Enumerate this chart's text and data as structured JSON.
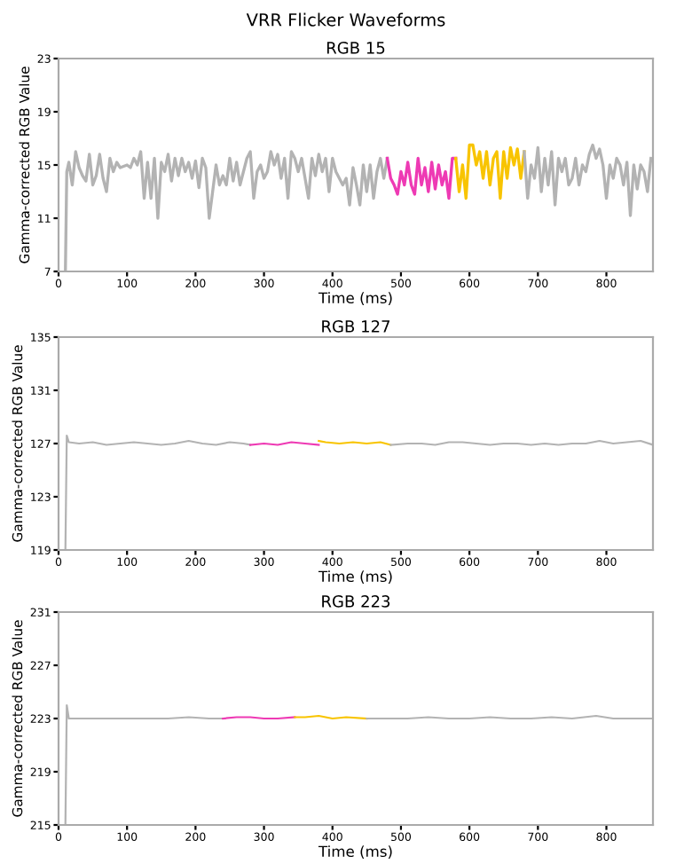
{
  "chart_data": [
    {
      "type": "line",
      "title": "VRR Flicker Waveforms",
      "subtitle": "RGB 15",
      "xlabel": "Time (ms)",
      "ylabel": "Gamma-corrected RGB Value",
      "xlim": [
        0,
        868
      ],
      "xticks": [
        0,
        100,
        200,
        300,
        400,
        500,
        600,
        700,
        800
      ],
      "ylim": [
        7,
        23
      ],
      "yticks": [
        7,
        11,
        15,
        19,
        23
      ],
      "grid": false,
      "marker": "none",
      "line_style": "solid",
      "series": [
        {
          "color": "#b3b3b3",
          "x": [
            10,
            12,
            15,
            20,
            25,
            30,
            35,
            40,
            45,
            50,
            55,
            60,
            65,
            70,
            75,
            80,
            85,
            90,
            100,
            105,
            110,
            115,
            120,
            125,
            130,
            135,
            140,
            145,
            150,
            155,
            160,
            165,
            170,
            175,
            180,
            185,
            190,
            195,
            200,
            205,
            210,
            215,
            220,
            225,
            230,
            235,
            240,
            245,
            250,
            255,
            260,
            265,
            270,
            275,
            280,
            285,
            290,
            295,
            300,
            305,
            310,
            315,
            320,
            325,
            330,
            335,
            340,
            345,
            350,
            355,
            360,
            365,
            370,
            375,
            380,
            385,
            390,
            395,
            400,
            405,
            410,
            415,
            420,
            425,
            430,
            435,
            440,
            445,
            450,
            455,
            460,
            465,
            470,
            475,
            480
          ],
          "values": [
            7,
            14.5,
            15.2,
            13.5,
            16,
            14.8,
            14.2,
            13.8,
            15.8,
            13.5,
            14.2,
            15.8,
            14,
            13,
            15.5,
            14.5,
            15.2,
            14.8,
            15,
            14.8,
            15.5,
            15,
            16,
            12.5,
            15.2,
            12.5,
            15.5,
            11,
            15.2,
            14.5,
            15.8,
            13.8,
            15.5,
            14.2,
            15.5,
            14.5,
            15.2,
            14,
            15.3,
            13.3,
            15.5,
            14.8,
            11,
            13,
            15,
            13.5,
            14.2,
            13.5,
            15.5,
            13.8,
            15.2,
            13.5,
            14.5,
            15.5,
            16,
            12.5,
            14.5,
            15,
            14,
            14.5,
            16,
            15,
            15.8,
            14,
            15.5,
            12.5,
            16,
            15.5,
            14.5,
            15.5,
            14,
            12.5,
            15.5,
            14.2,
            15.8,
            14.5,
            15.5,
            13,
            15.5,
            14.5,
            14,
            13.5,
            14,
            12,
            14.8,
            13.5,
            12,
            15,
            13,
            15,
            12.5,
            14.5,
            15.5,
            14,
            15.5
          ]
        },
        {
          "color": "#ee3ab4",
          "x": [
            480,
            485,
            490,
            495,
            500,
            505,
            510,
            515,
            520,
            525,
            530,
            535,
            540,
            545,
            550,
            555,
            560,
            565,
            570,
            575,
            580
          ],
          "values": [
            15.5,
            14,
            13.5,
            12.8,
            14.5,
            13.5,
            15.2,
            13.5,
            12.8,
            15.5,
            13.5,
            14.8,
            13,
            15.2,
            13.2,
            15,
            13.5,
            14.5,
            12.5,
            15.5,
            15.5
          ]
        },
        {
          "color": "#f8c400",
          "x": [
            580,
            585,
            590,
            595,
            600,
            605,
            610,
            615,
            620,
            625,
            630,
            635,
            640,
            645,
            650,
            655,
            660,
            665,
            670,
            675,
            680
          ],
          "values": [
            15.5,
            13,
            15,
            12.5,
            16.5,
            16.5,
            15,
            16,
            14,
            16,
            13.5,
            15.5,
            16,
            12.5,
            16,
            14,
            16.3,
            15,
            16.2,
            14,
            16
          ]
        },
        {
          "color": "#b3b3b3",
          "x": [
            680,
            685,
            690,
            695,
            700,
            705,
            710,
            715,
            720,
            725,
            730,
            735,
            740,
            745,
            750,
            755,
            760,
            765,
            770,
            775,
            780,
            785,
            790,
            795,
            800,
            805,
            810,
            815,
            820,
            825,
            830,
            835,
            840,
            845,
            850,
            855,
            860,
            865
          ],
          "values": [
            16,
            12.5,
            15,
            14,
            16.3,
            13,
            15.5,
            13.5,
            16,
            12,
            15.5,
            14.5,
            15.5,
            13.5,
            14,
            15.5,
            13.5,
            15,
            14.5,
            15.8,
            16.5,
            15.5,
            16.2,
            15,
            12.5,
            15,
            14,
            15.5,
            15,
            13.5,
            15.2,
            11.2,
            15,
            13.2,
            15,
            14.5,
            13,
            15.5
          ]
        }
      ]
    },
    {
      "type": "line",
      "subtitle": "RGB 127",
      "xlabel": "Time (ms)",
      "ylabel": "Gamma-corrected RGB Value",
      "xlim": [
        0,
        868
      ],
      "xticks": [
        0,
        100,
        200,
        300,
        400,
        500,
        600,
        700,
        800
      ],
      "ylim": [
        119,
        135
      ],
      "yticks": [
        119,
        123,
        127,
        131,
        135
      ],
      "grid": false,
      "marker": "none",
      "line_style": "solid",
      "series": [
        {
          "color": "#b3b3b3",
          "x": [
            10,
            12,
            15,
            30,
            50,
            70,
            90,
            110,
            130,
            150,
            170,
            190,
            210,
            230,
            250,
            270,
            280
          ],
          "values": [
            119,
            127.6,
            127.1,
            127,
            127.1,
            126.9,
            127,
            127.1,
            127,
            126.9,
            127,
            127.2,
            127,
            126.9,
            127.1,
            127,
            126.9
          ]
        },
        {
          "color": "#ee3ab4",
          "x": [
            280,
            300,
            320,
            340,
            360,
            380
          ],
          "values": [
            126.9,
            127,
            126.9,
            127.1,
            127,
            126.9
          ]
        },
        {
          "color": "#f8c400",
          "x": [
            380,
            390,
            410,
            430,
            450,
            470,
            485
          ],
          "values": [
            127.2,
            127.1,
            127,
            127.1,
            127,
            127.1,
            126.9
          ]
        },
        {
          "color": "#b3b3b3",
          "x": [
            485,
            510,
            530,
            550,
            570,
            590,
            610,
            630,
            650,
            670,
            690,
            710,
            730,
            750,
            770,
            790,
            810,
            830,
            850,
            868
          ],
          "values": [
            126.9,
            127,
            127,
            126.9,
            127.1,
            127.1,
            127,
            126.9,
            127,
            127,
            126.9,
            127,
            126.9,
            127,
            127,
            127.2,
            127,
            127.1,
            127.2,
            126.9
          ]
        }
      ]
    },
    {
      "type": "line",
      "subtitle": "RGB 223",
      "xlabel": "Time (ms)",
      "ylabel": "Gamma-corrected RGB Value",
      "xlim": [
        0,
        868
      ],
      "xticks": [
        0,
        100,
        200,
        300,
        400,
        500,
        600,
        700,
        800
      ],
      "ylim": [
        215,
        231
      ],
      "yticks": [
        215,
        219,
        223,
        227,
        231
      ],
      "grid": false,
      "marker": "none",
      "line_style": "solid",
      "series": [
        {
          "color": "#b3b3b3",
          "x": [
            10,
            12,
            15,
            40,
            70,
            100,
            130,
            160,
            190,
            220,
            240
          ],
          "values": [
            215,
            224,
            223,
            223,
            223,
            223,
            223,
            223,
            223.1,
            223,
            223
          ]
        },
        {
          "color": "#ee3ab4",
          "x": [
            240,
            260,
            280,
            300,
            320,
            345
          ],
          "values": [
            223,
            223.1,
            223.1,
            223,
            223,
            223.1
          ]
        },
        {
          "color": "#f8c400",
          "x": [
            345,
            360,
            380,
            400,
            420,
            450
          ],
          "values": [
            223.1,
            223.1,
            223.2,
            223,
            223.1,
            223
          ]
        },
        {
          "color": "#b3b3b3",
          "x": [
            450,
            480,
            510,
            540,
            570,
            600,
            630,
            660,
            690,
            720,
            750,
            785,
            810,
            840,
            868
          ],
          "values": [
            223,
            223,
            223,
            223.1,
            223,
            223,
            223.1,
            223,
            223,
            223.1,
            223,
            223.2,
            223,
            223,
            223
          ]
        }
      ]
    }
  ]
}
